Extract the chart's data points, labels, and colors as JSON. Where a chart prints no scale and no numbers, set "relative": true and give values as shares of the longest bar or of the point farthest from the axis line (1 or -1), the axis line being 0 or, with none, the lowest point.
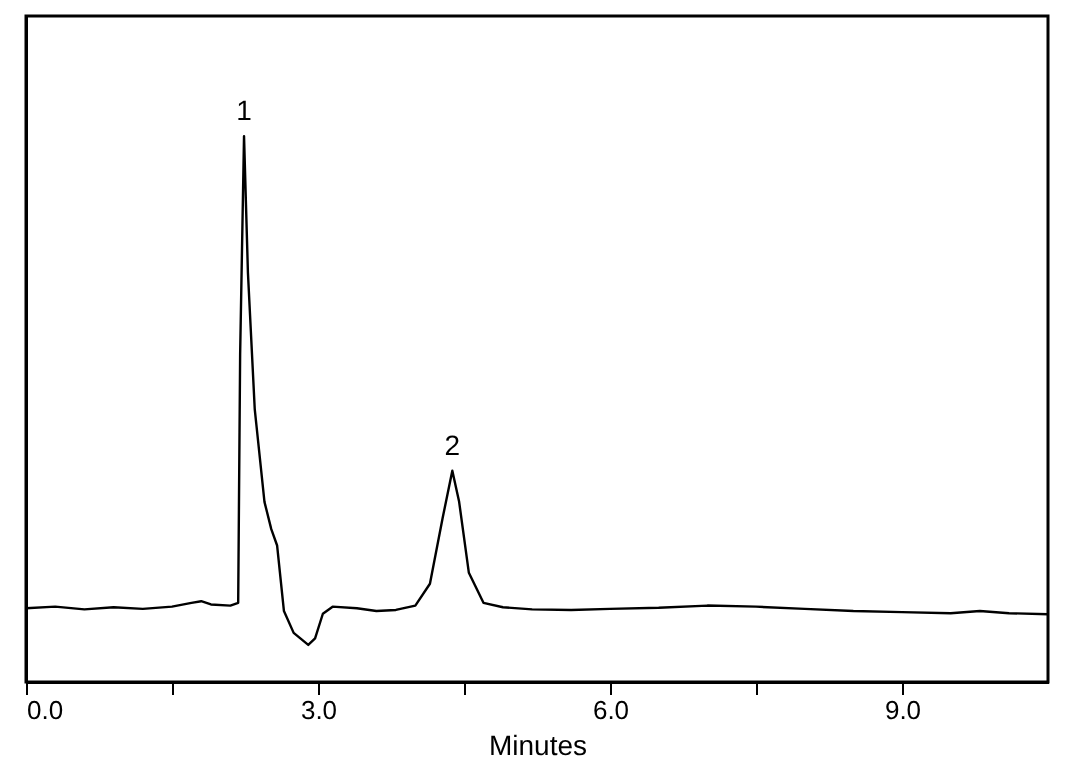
{
  "chart_data": {
    "type": "line",
    "relative": true,
    "xlabel": "Minutes",
    "x": [
      0.0,
      0.3,
      0.6,
      0.9,
      1.2,
      1.5,
      1.7,
      1.8,
      1.9,
      2.1,
      2.18,
      2.2,
      2.24,
      2.28,
      2.35,
      2.45,
      2.52,
      2.58,
      2.65,
      2.75,
      2.9,
      2.97,
      3.05,
      3.15,
      3.4,
      3.6,
      3.8,
      4.0,
      4.15,
      4.28,
      4.38,
      4.45,
      4.55,
      4.7,
      4.9,
      5.2,
      5.6,
      6.0,
      6.5,
      7.0,
      7.5,
      8.0,
      8.5,
      9.0,
      9.5,
      9.8,
      10.1,
      10.5
    ],
    "series": [
      {
        "color": "#000000",
        "values": [
          0.135,
          0.138,
          0.133,
          0.137,
          0.134,
          0.138,
          0.145,
          0.148,
          0.142,
          0.14,
          0.145,
          0.6,
          1.0,
          0.75,
          0.5,
          0.33,
          0.28,
          0.25,
          0.13,
          0.09,
          0.068,
          0.08,
          0.125,
          0.138,
          0.135,
          0.13,
          0.132,
          0.14,
          0.18,
          0.3,
          0.387,
          0.33,
          0.2,
          0.145,
          0.137,
          0.133,
          0.132,
          0.134,
          0.136,
          0.14,
          0.138,
          0.134,
          0.13,
          0.128,
          0.126,
          0.13,
          0.126,
          0.124
        ]
      }
    ],
    "xlim": [
      0,
      10.5
    ],
    "xticks": [
      {
        "value": 0,
        "label": "0.0"
      },
      {
        "value": 1.5,
        "label": null
      },
      {
        "value": 3,
        "label": "3.0"
      },
      {
        "value": 4.5,
        "label": null
      },
      {
        "value": 6,
        "label": "6.0"
      },
      {
        "value": 7.5,
        "label": null
      },
      {
        "value": 9,
        "label": "9.0"
      }
    ],
    "annotations": [
      {
        "text": "1",
        "x": 2.24,
        "y": 1.0
      },
      {
        "text": "2",
        "x": 4.38,
        "y": 0.387
      }
    ],
    "grid": false,
    "marker": "none",
    "line_style": "solid"
  }
}
